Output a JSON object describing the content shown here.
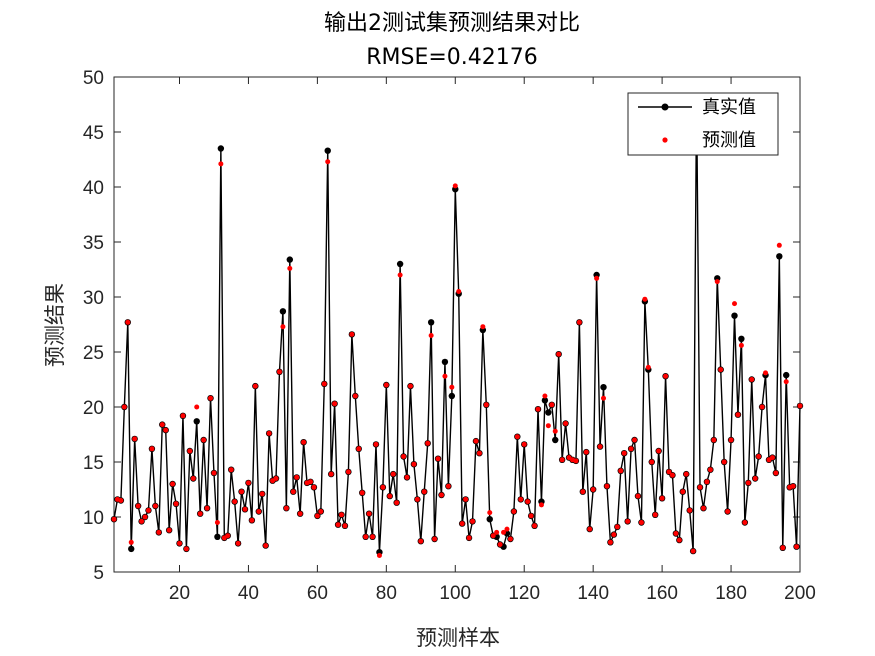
{
  "chart_data": {
    "type": "line",
    "title": "输出2测试集预测结果对比",
    "subtitle": "RMSE=0.42176",
    "xlabel": "预测样本",
    "ylabel": "预测结果",
    "xlim": [
      1,
      200
    ],
    "ylim": [
      5,
      50
    ],
    "xticks": [
      20,
      40,
      60,
      80,
      100,
      120,
      140,
      160,
      180,
      200
    ],
    "yticks": [
      5,
      10,
      15,
      20,
      25,
      30,
      35,
      40,
      45,
      50
    ],
    "legend_position": "top-right",
    "series": [
      {
        "name": "真实值",
        "style": "black line with dot markers",
        "color": "#000000",
        "values": [
          9.8,
          11.6,
          11.5,
          20,
          27.7,
          7.1,
          17.1,
          11,
          9.6,
          10,
          10.6,
          16.2,
          11,
          8.6,
          18.4,
          17.9,
          8.8,
          13,
          11.2,
          7.6,
          19.2,
          7.1,
          16,
          13.5,
          18.7,
          10.3,
          17,
          10.8,
          20.8,
          14,
          8.2,
          43.5,
          8.1,
          8.3,
          14.3,
          11.4,
          7.6,
          12.3,
          10.7,
          13.1,
          9.7,
          21.9,
          10.5,
          12.1,
          7.4,
          17.6,
          13.3,
          13.5,
          23.2,
          28.7,
          10.8,
          33.4,
          12.3,
          13.6,
          10.3,
          16.8,
          13.1,
          13.2,
          12.7,
          10.1,
          10.5,
          22.1,
          43.3,
          13.9,
          20.3,
          9.3,
          10.2,
          9.2,
          14.1,
          26.6,
          21,
          16.2,
          12.2,
          8.2,
          10.3,
          8.2,
          16.6,
          6.8,
          12.7,
          22,
          11.9,
          13.9,
          11.3,
          33,
          15.5,
          13.6,
          21.9,
          14.8,
          11.6,
          7.8,
          12.3,
          16.7,
          27.7,
          8,
          15.3,
          12,
          24.1,
          12.8,
          21,
          39.8,
          30.3,
          9.4,
          11.6,
          8.1,
          9.6,
          16.9,
          15.8,
          27,
          20.2,
          9.8,
          8.3,
          8.2,
          7.5,
          7.3,
          8.5,
          8,
          10.5,
          17.3,
          11.6,
          16.6,
          11.4,
          10.1,
          9.2,
          19.8,
          11.4,
          20.6,
          19.5,
          20.2,
          17,
          24.8,
          15.2,
          18.5,
          15.4,
          15.2,
          15.1,
          27.7,
          12.3,
          15.9,
          8.9,
          12.5,
          32,
          16.4,
          21.8,
          12.8,
          7.7,
          8.4,
          9.1,
          14.2,
          15.8,
          9.6,
          16.2,
          17,
          11.9,
          9.5,
          29.6,
          23.4,
          15,
          10.2,
          16,
          11.7,
          22.8,
          14.1,
          13.8,
          8.5,
          7.9,
          12.3,
          13.9,
          10.6,
          6.9,
          48.3,
          12.7,
          10.8,
          13.2,
          14.3,
          17,
          31.7,
          23.4,
          15,
          10.5,
          17,
          28.3,
          19.3,
          26.2,
          9.5,
          13.1,
          22.5,
          13.5,
          15.5,
          20,
          22.9,
          15.2,
          15.4,
          14,
          33.7,
          7.2,
          22.9,
          12.7,
          12.8,
          7.3,
          20.1
        ]
      },
      {
        "name": "预测值",
        "style": "red dot markers",
        "color": "#ff0000",
        "values": [
          9.8,
          11.6,
          11.5,
          20,
          27.7,
          7.7,
          17.1,
          11,
          9.6,
          10,
          10.6,
          16.2,
          11,
          8.6,
          18.4,
          17.9,
          8.8,
          13,
          11.2,
          7.6,
          19.2,
          7.1,
          16,
          13.5,
          20,
          10.3,
          17,
          10.8,
          20.8,
          14,
          9.5,
          42.1,
          8.1,
          8.3,
          14.3,
          11.4,
          7.6,
          12.3,
          10.7,
          13.1,
          9.7,
          21.9,
          10.5,
          12.1,
          7.4,
          17.6,
          13.3,
          13.5,
          23.2,
          27.3,
          10.8,
          32.6,
          12.3,
          13.6,
          10.3,
          16.8,
          13.1,
          13.2,
          12.7,
          10.1,
          10.5,
          22.1,
          42.3,
          13.9,
          20.3,
          9.3,
          10.2,
          9.2,
          14.1,
          26.6,
          21,
          16.2,
          12.2,
          8.2,
          10.3,
          8.2,
          16.6,
          6.5,
          12.7,
          22,
          11.9,
          13.9,
          11.3,
          32,
          15.5,
          13.6,
          21.9,
          14.8,
          11.6,
          7.8,
          12.3,
          16.7,
          26.5,
          8,
          15.3,
          12,
          22.8,
          12.8,
          21.8,
          40.1,
          30.5,
          9.4,
          11.6,
          8.1,
          9.6,
          16.9,
          15.8,
          27.3,
          20.2,
          10.4,
          8.3,
          8.6,
          7.5,
          8.6,
          8.9,
          8,
          10.5,
          17.3,
          11.6,
          16.6,
          11.4,
          10.1,
          9.2,
          19.8,
          11.1,
          21,
          18.3,
          20.2,
          17.8,
          24.8,
          15.2,
          18.5,
          15.4,
          15.2,
          15.1,
          27.7,
          12.3,
          15.9,
          8.9,
          12.5,
          31.7,
          16.4,
          20.8,
          12.8,
          7.7,
          8.4,
          9.1,
          14.2,
          15.8,
          9.6,
          16.2,
          17,
          11.9,
          9.5,
          29.8,
          23.6,
          15,
          10.2,
          16,
          11.7,
          22.8,
          14.1,
          13.8,
          8.5,
          7.9,
          12.3,
          13.9,
          10.6,
          6.9,
          48.3,
          12.7,
          10.8,
          13.2,
          14.3,
          17,
          31.4,
          23.4,
          15,
          10.5,
          17,
          29.4,
          19.3,
          25.6,
          9.5,
          13.1,
          22.5,
          13.5,
          15.5,
          20,
          23.1,
          15.2,
          15.4,
          14,
          34.7,
          7.2,
          22.3,
          12.7,
          12.8,
          7.3,
          20.1
        ]
      }
    ]
  }
}
